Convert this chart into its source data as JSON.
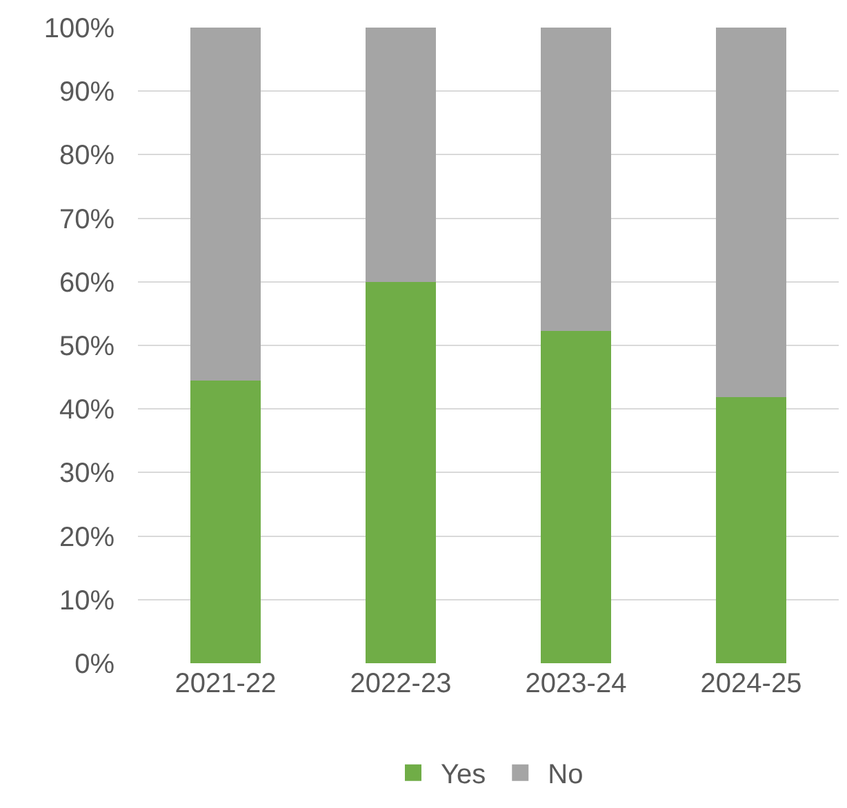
{
  "chart_data": {
    "type": "bar",
    "stacked": true,
    "categories": [
      "2021-22",
      "2022-23",
      "2023-24",
      "2024-25"
    ],
    "series": [
      {
        "name": "Yes",
        "color": "#70ad47",
        "values": [
          44.5,
          60,
          52.3,
          41.9
        ]
      },
      {
        "name": "No",
        "color": "#a5a5a5",
        "values": [
          55.5,
          40,
          47.7,
          58.1
        ]
      }
    ],
    "ylim": [
      0,
      100
    ],
    "yticks": [
      {
        "value": 0,
        "label": "0%"
      },
      {
        "value": 10,
        "label": "10%"
      },
      {
        "value": 20,
        "label": "20%"
      },
      {
        "value": 30,
        "label": "30%"
      },
      {
        "value": 40,
        "label": "40%"
      },
      {
        "value": 50,
        "label": "50%"
      },
      {
        "value": 60,
        "label": "60%"
      },
      {
        "value": 70,
        "label": "70%"
      },
      {
        "value": 80,
        "label": "80%"
      },
      {
        "value": 90,
        "label": "90%"
      },
      {
        "value": 100,
        "label": "100%"
      }
    ],
    "grid": "y",
    "legend": "bottom"
  }
}
